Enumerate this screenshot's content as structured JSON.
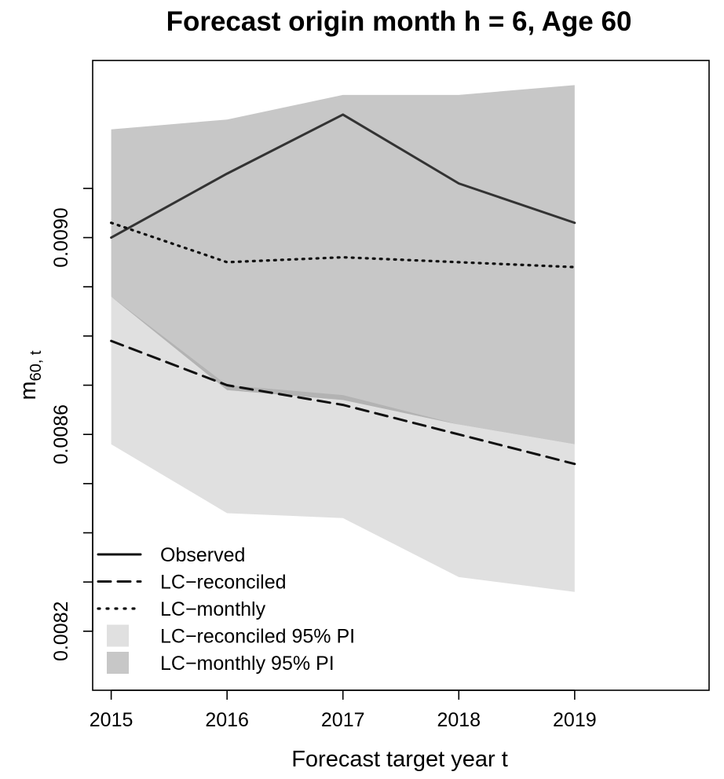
{
  "chart_data": {
    "type": "line",
    "title": "Forecast origin month h = 6, Age 60",
    "xlabel": "Forecast target year t",
    "ylabel": {
      "main": "m",
      "sub": "60, t"
    },
    "x": [
      2015,
      2016,
      2017,
      2018,
      2019
    ],
    "x_tick_labels": [
      "2015",
      "2016",
      "2017",
      "2018",
      "2019"
    ],
    "xlim": [
      2014.84,
      2020.16
    ],
    "ylim": [
      0.00808,
      0.00936
    ],
    "y_ticks": [
      0.0082,
      0.0083,
      0.0084,
      0.0085,
      0.0086,
      0.0087,
      0.0088,
      0.0089,
      0.009,
      0.0091
    ],
    "y_tick_labels": [
      "0.0082",
      "",
      "",
      "",
      "0.0086",
      "",
      "",
      "",
      "0.0090",
      ""
    ],
    "series": [
      {
        "name": "Observed",
        "style": "solid",
        "color": "#333333",
        "values": [
          0.009,
          0.00913,
          0.00925,
          0.00911,
          0.00903
        ]
      },
      {
        "name": "LC−reconciled",
        "style": "dashed",
        "color": "#111111",
        "values": [
          0.00879,
          0.0087,
          0.00866,
          0.0086,
          0.00854
        ]
      },
      {
        "name": "LC−monthly",
        "style": "dotted",
        "color": "#111111",
        "values": [
          0.00903,
          0.00895,
          0.00896,
          0.00895,
          0.00894
        ]
      }
    ],
    "bands": [
      {
        "name": "LC−reconciled 95% PI",
        "color": "#e0e0e0",
        "lower": [
          0.00858,
          0.00844,
          0.00843,
          0.00831,
          0.00828
        ],
        "upper": [
          0.00888,
          0.0087,
          0.00868,
          0.00862,
          0.00858
        ]
      },
      {
        "name": "LC−monthly 95% PI",
        "color": "#c7c7c7",
        "lower": [
          0.00888,
          0.00869,
          0.00867,
          0.00862,
          0.00858
        ],
        "upper": [
          0.00922,
          0.00924,
          0.00929,
          0.00929,
          0.00931
        ]
      }
    ],
    "overlap_color": "#b3b3b3",
    "legend_position": "bottom-left",
    "legend": [
      {
        "label": "Observed",
        "kind": "line",
        "style": "solid"
      },
      {
        "label": "LC−reconciled",
        "kind": "line",
        "style": "dashed"
      },
      {
        "label": "LC−monthly",
        "kind": "line",
        "style": "dotted"
      },
      {
        "label": "LC−reconciled 95% PI",
        "kind": "box",
        "color": "#e0e0e0"
      },
      {
        "label": "LC−monthly 95% PI",
        "kind": "box",
        "color": "#c7c7c7"
      }
    ]
  }
}
